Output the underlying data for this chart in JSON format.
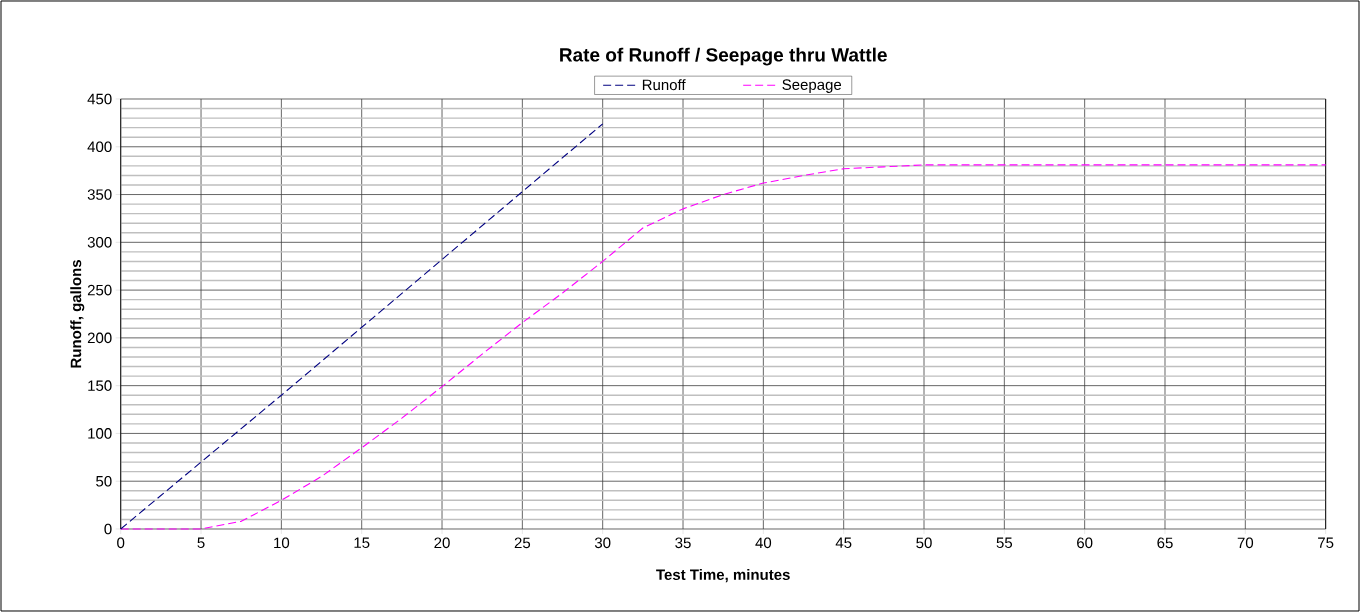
{
  "chart_data": {
    "type": "line",
    "title": "Rate of Runoff / Seepage thru Wattle",
    "xlabel": "Test Time, minutes",
    "ylabel": "Runoff, gallons",
    "xlim": [
      0,
      75
    ],
    "ylim": [
      0,
      450
    ],
    "xticks": [
      0,
      5,
      10,
      15,
      20,
      25,
      30,
      35,
      40,
      45,
      50,
      55,
      60,
      65,
      70,
      75
    ],
    "yticks": [
      0,
      50,
      100,
      150,
      200,
      250,
      300,
      350,
      400,
      450
    ],
    "grid": true,
    "legend": "top",
    "line_style": "dashed",
    "marker": "none",
    "series": [
      {
        "name": "Runoff",
        "color": "#000080",
        "x": [
          0,
          5,
          10,
          15,
          20,
          25,
          30
        ],
        "values": [
          0,
          70,
          140,
          211,
          282,
          353,
          424
        ]
      },
      {
        "name": "Seepage",
        "color": "#ff00ff",
        "x": [
          0,
          5,
          7.5,
          10,
          12.5,
          15,
          17.5,
          20,
          22.5,
          25,
          27.5,
          30,
          32.5,
          35,
          37.5,
          40,
          42.5,
          45,
          47.5,
          50,
          55,
          60,
          65,
          70,
          75
        ],
        "values": [
          0,
          0,
          8,
          30,
          55,
          85,
          116,
          149,
          183,
          216,
          247,
          280,
          315,
          335,
          350,
          362,
          370,
          377,
          379,
          381,
          381,
          381,
          381,
          381,
          381
        ]
      }
    ]
  }
}
